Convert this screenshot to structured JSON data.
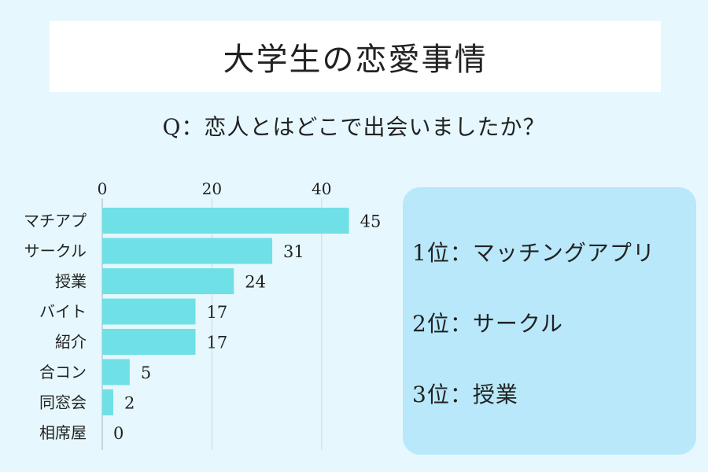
{
  "header": {
    "title": "大学生の恋愛事情"
  },
  "question": "Q：恋人とはどこで出会いましたか？",
  "chart_data": {
    "type": "bar",
    "orientation": "horizontal",
    "categories": [
      "マチアプ",
      "サークル",
      "授業",
      "バイト",
      "紹介",
      "合コン",
      "同窓会",
      "相席屋"
    ],
    "values": [
      45,
      31,
      24,
      17,
      17,
      5,
      2,
      0
    ],
    "x_ticks": [
      0,
      20,
      40
    ],
    "xlim": [
      0,
      66
    ],
    "grid": true,
    "axis_position": "top",
    "colors": {
      "bar": "#6ee0e6",
      "grid": "#d0d8da",
      "axis": "#bfc8cc"
    }
  },
  "ranking": [
    {
      "rank": "1位",
      "sep": "：",
      "label": "マッチングアプリ"
    },
    {
      "rank": "2位",
      "sep": "：",
      "label": "サークル"
    },
    {
      "rank": "3位",
      "sep": "：",
      "label": "授業"
    }
  ]
}
